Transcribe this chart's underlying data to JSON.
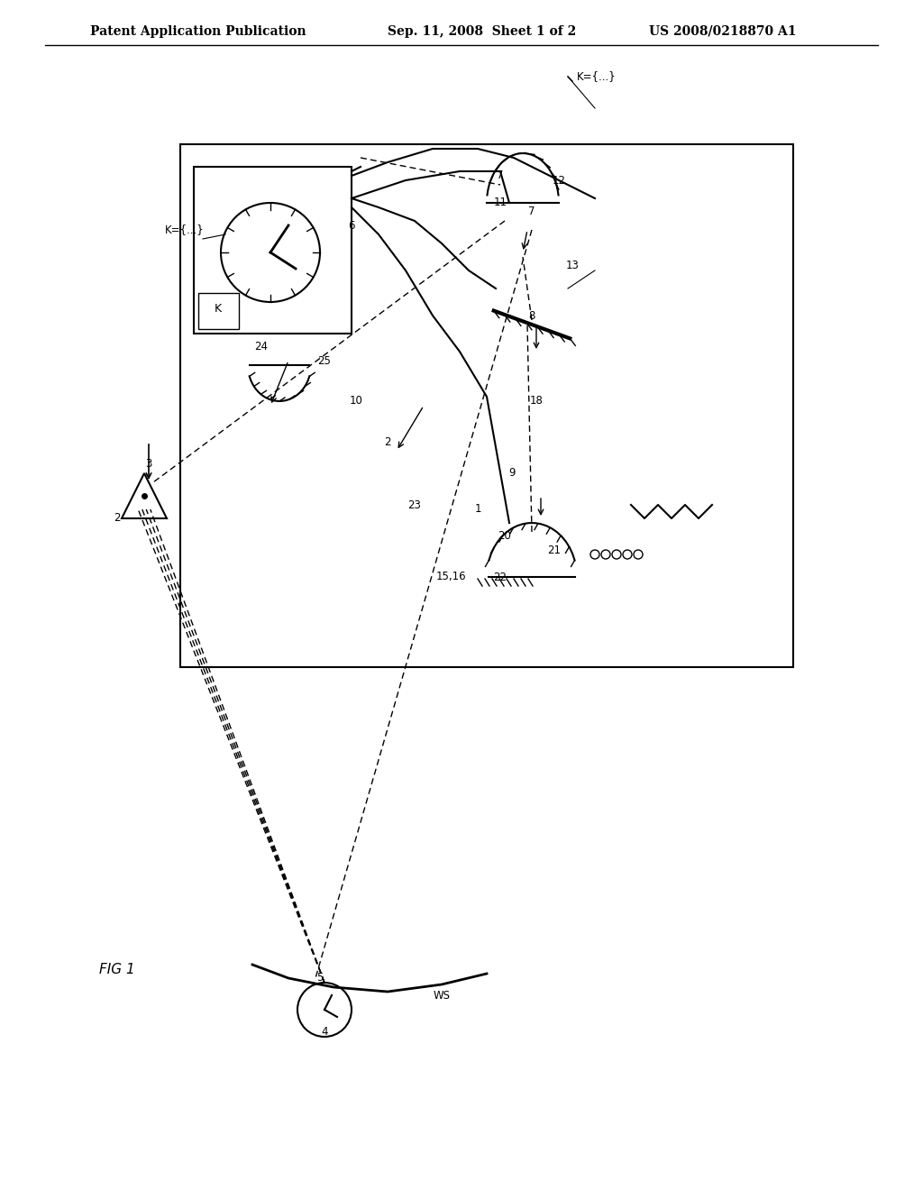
{
  "bg_color": "#ffffff",
  "header_text1": "Patent Application Publication",
  "header_text2": "Sep. 11, 2008  Sheet 1 of 2",
  "header_text3": "US 2008/0218870 A1",
  "fig_label": "FIG 1",
  "title_fontsize": 11,
  "line_color": "#000000",
  "box_bg": "#ffffff"
}
